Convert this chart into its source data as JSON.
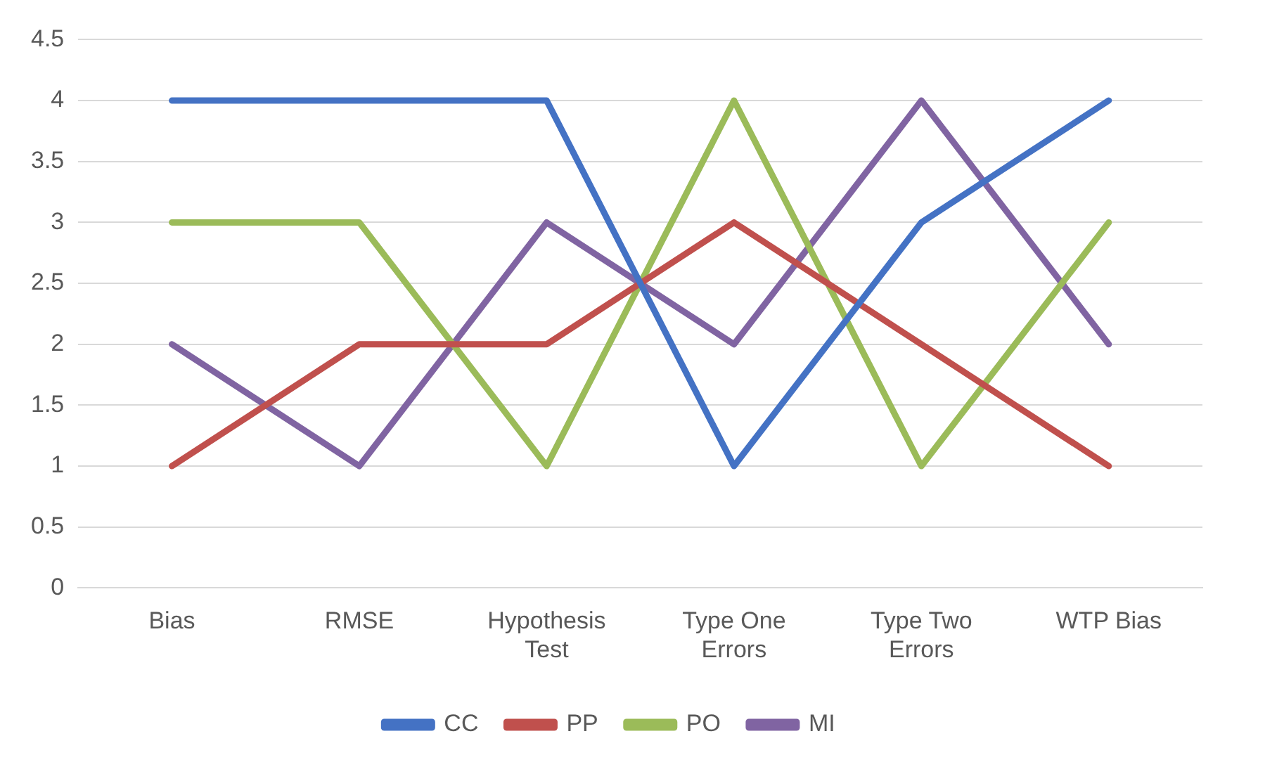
{
  "chart_data": {
    "type": "line",
    "categories": [
      "Bias",
      "RMSE",
      "Hypothesis Test",
      "Type One Errors",
      "Type Two Errors",
      "WTP Bias"
    ],
    "series": [
      {
        "name": "CC",
        "color": "#4472c4",
        "values": [
          4,
          4,
          4,
          1,
          3,
          4
        ]
      },
      {
        "name": "PP",
        "color": "#c0504d",
        "values": [
          1,
          2,
          2,
          3,
          2,
          1
        ]
      },
      {
        "name": "PO",
        "color": "#9bbb59",
        "values": [
          3,
          3,
          1,
          4,
          1,
          3
        ]
      },
      {
        "name": "MI",
        "color": "#8064a2",
        "values": [
          2,
          1,
          3,
          2,
          4,
          2
        ]
      }
    ],
    "ylim": [
      0,
      4.5
    ],
    "yticks": [
      0,
      0.5,
      1,
      1.5,
      2,
      2.5,
      3,
      3.5,
      4,
      4.5
    ],
    "grid": "y",
    "legend": "bottom",
    "marker": "none",
    "line_style": "solid"
  }
}
